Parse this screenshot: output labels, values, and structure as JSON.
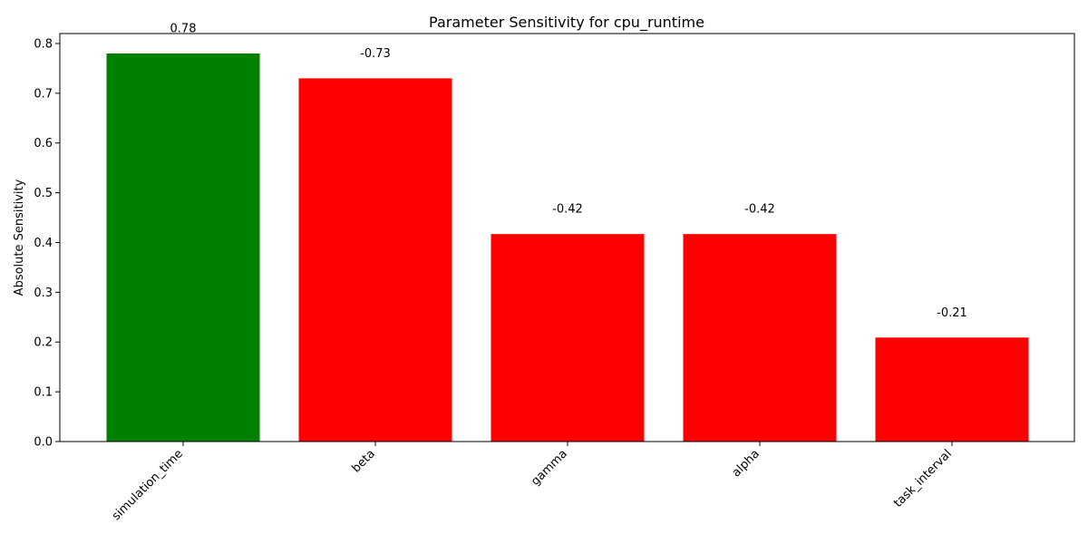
{
  "chart_data": {
    "type": "bar",
    "title": "Parameter Sensitivity for cpu_runtime",
    "xlabel": "",
    "ylabel": "Absolute Sensitivity",
    "categories": [
      "simulation_time",
      "beta",
      "gamma",
      "alpha",
      "task_interval"
    ],
    "values": [
      0.78,
      0.73,
      0.417,
      0.417,
      0.209
    ],
    "value_labels": [
      "0.78",
      "-0.73",
      "-0.42",
      "-0.42",
      "-0.21"
    ],
    "bar_colors": [
      "#008000",
      "#ff0000",
      "#ff0000",
      "#ff0000",
      "#ff0000"
    ],
    "ylim": [
      0,
      0.82
    ],
    "yticks": [
      0.0,
      0.1,
      0.2,
      0.3,
      0.4,
      0.5,
      0.6,
      0.7,
      0.8
    ],
    "ytick_labels": [
      "0.0",
      "0.1",
      "0.2",
      "0.3",
      "0.4",
      "0.5",
      "0.6",
      "0.7",
      "0.8"
    ],
    "grid": false,
    "legend": "none"
  }
}
